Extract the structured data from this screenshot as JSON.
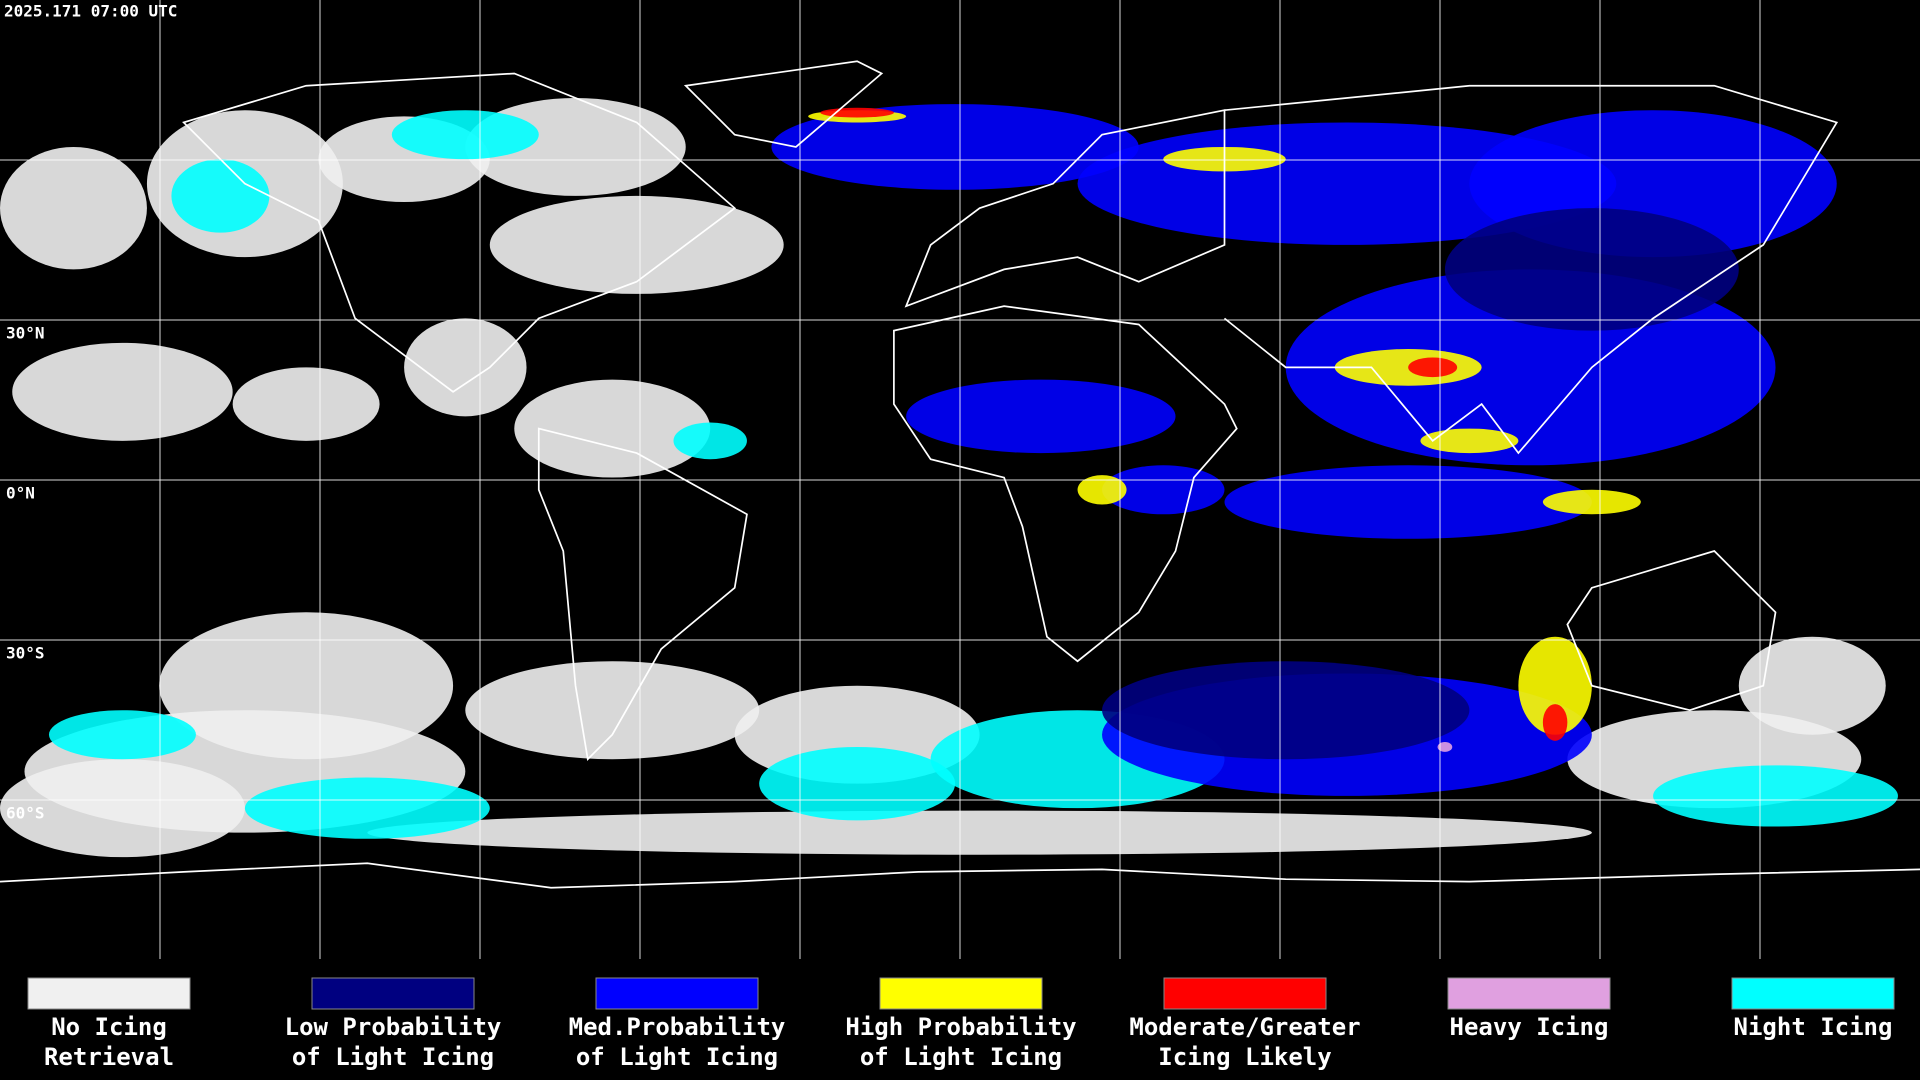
{
  "header": {
    "timestamp": "2025.171 07:00 UTC"
  },
  "map": {
    "latitude_labels": [
      {
        "label": "30°N"
      },
      {
        "label": "0°N"
      },
      {
        "label": "30°S"
      },
      {
        "label": "60°S"
      }
    ]
  },
  "legend": {
    "items": [
      {
        "color": "#f0f0f0",
        "label": [
          "No Icing",
          "Retrieval"
        ]
      },
      {
        "color": "#000080",
        "label": [
          "Low Probability",
          "of Light Icing"
        ]
      },
      {
        "color": "#0000ff",
        "label": [
          "Med.Probability",
          "of Light Icing"
        ]
      },
      {
        "color": "#ffff00",
        "label": [
          "High Probability",
          "of Light Icing"
        ]
      },
      {
        "color": "#ff0000",
        "label": [
          "Moderate/Greater",
          "Icing Likely"
        ]
      },
      {
        "color": "#e0a0e0",
        "label": [
          "Heavy Icing",
          ""
        ]
      },
      {
        "color": "#00ffff",
        "label": [
          "Night Icing",
          ""
        ]
      }
    ]
  }
}
